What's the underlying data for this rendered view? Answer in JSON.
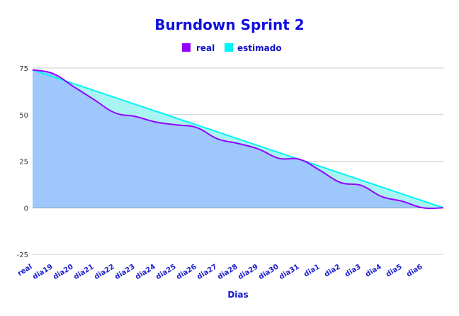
{
  "chart_data": {
    "type": "area",
    "title": "Burndown Sprint 2",
    "xlabel": "Dias",
    "ylabel": "",
    "categories": [
      "real",
      "dia19",
      "dia20",
      "dia21",
      "dia22",
      "dia23",
      "dia24",
      "dia25",
      "dia26",
      "dia27",
      "dia28",
      "dia29",
      "dia30",
      "dia31",
      "dia1",
      "dia2",
      "dia3",
      "dia4",
      "dia5",
      "dia6",
      ""
    ],
    "ylim": [
      -25,
      75
    ],
    "yticks": [
      75,
      50,
      25,
      0,
      -25
    ],
    "grid": true,
    "legend_position": "top",
    "series": [
      {
        "name": "real",
        "color": "#9400ff",
        "fill": "#9ec8fb",
        "values": [
          74,
          72,
          65,
          58,
          51,
          49,
          46,
          44.5,
          43,
          37,
          34.5,
          31.5,
          26.5,
          26,
          20,
          13.5,
          12,
          6,
          3.5,
          0,
          0
        ]
      },
      {
        "name": "estimado",
        "color": "#00f5f5",
        "fill": "#aaf3f3",
        "values": [
          74,
          70.3,
          66.6,
          62.9,
          59.2,
          55.5,
          51.8,
          48.1,
          44.4,
          40.7,
          37,
          33.3,
          29.6,
          25.9,
          22.2,
          18.5,
          14.8,
          11.1,
          7.4,
          3.7,
          0
        ]
      }
    ]
  }
}
